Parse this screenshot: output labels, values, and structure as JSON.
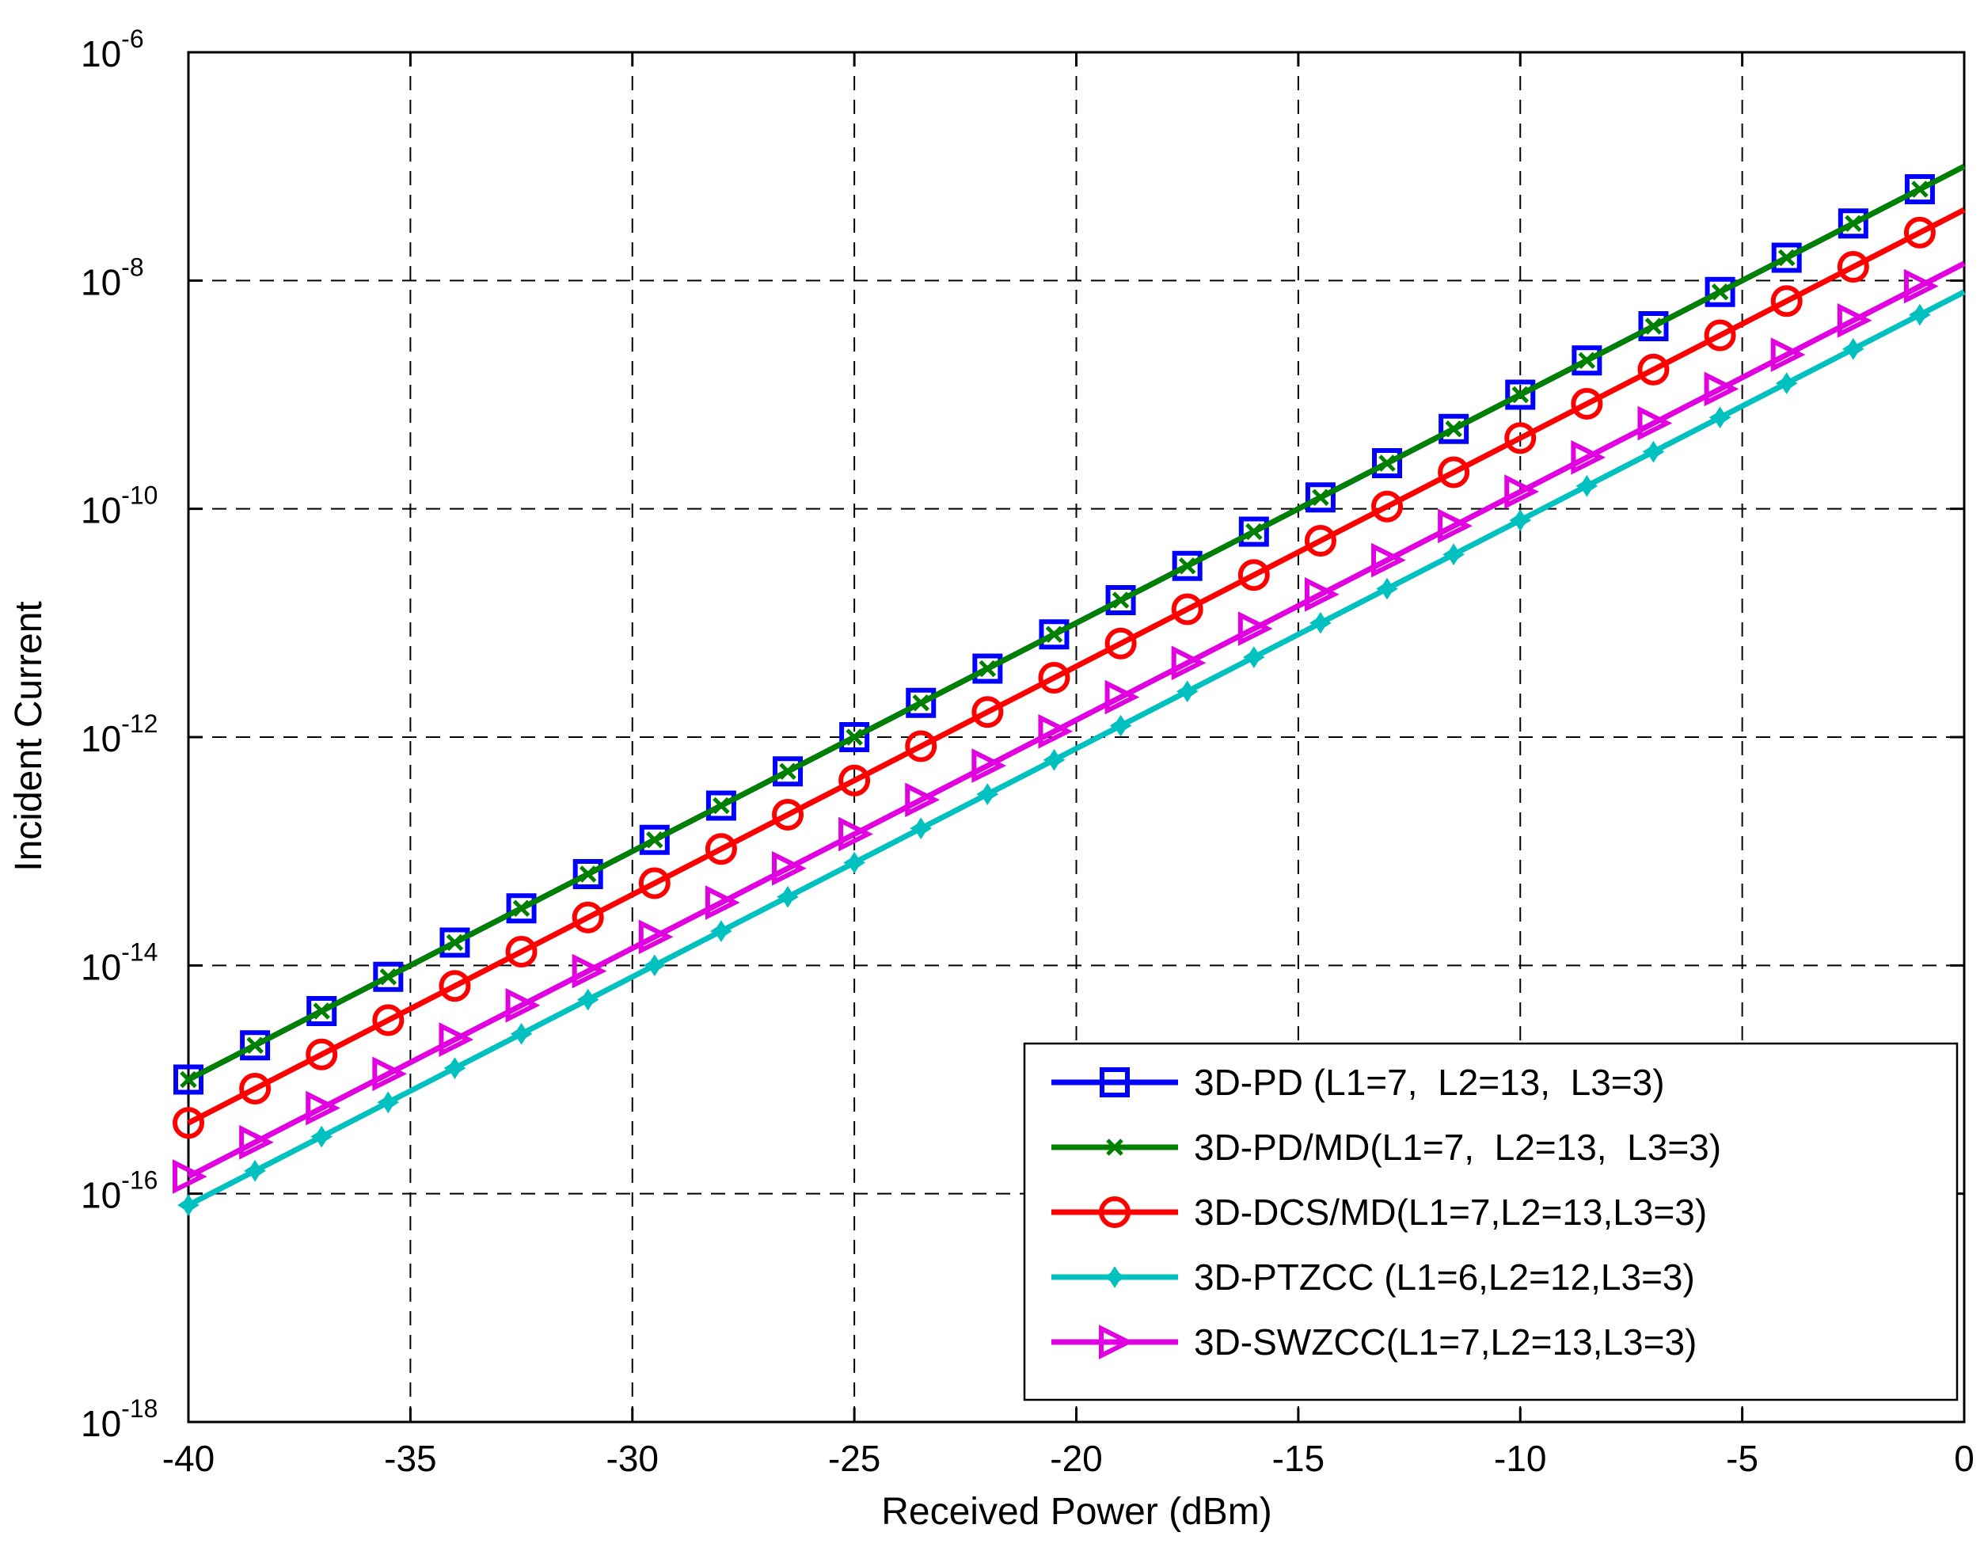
{
  "chart_data": {
    "type": "line",
    "xlabel": "Received Power (dBm)",
    "ylabel": "Incident Current",
    "xlim": [
      -40,
      0
    ],
    "ylim_exponent": [
      -18,
      -6
    ],
    "yscale": "log",
    "grid": true,
    "legend_position": "bottom-right",
    "x_ticks": [
      "-40",
      "-35",
      "-30",
      "-25",
      "-20",
      "-15",
      "-10",
      "-5",
      "0"
    ],
    "y_ticks": [
      {
        "base": "10",
        "exp": "-6"
      },
      {
        "base": "10",
        "exp": "-8"
      },
      {
        "base": "10",
        "exp": "-10"
      },
      {
        "base": "10",
        "exp": "-12"
      },
      {
        "base": "10",
        "exp": "-14"
      },
      {
        "base": "10",
        "exp": "-16"
      },
      {
        "base": "10",
        "exp": "-18"
      }
    ],
    "x": [
      -40,
      -38.5,
      -37,
      -35.5,
      -34,
      -32.5,
      -31,
      -29.5,
      -28,
      -26.5,
      -25,
      -23.5,
      -22,
      -20.5,
      -19,
      -17.5,
      -16,
      -14.5,
      -13,
      -11.5,
      -10,
      -8.5,
      -7,
      -5.5,
      -4,
      -2.5,
      -1
    ],
    "series": [
      {
        "name": "3D-PD (L1=7,  L2=13,  L3=3)",
        "color": "#0000ff",
        "marker": "square",
        "log10_start": -15.0,
        "log10_slope_per_dBm": 0.2,
        "x_end": -1
      },
      {
        "name": "3D-PD/MD(L1=7,  L2=13,  L3=3)",
        "color": "#008000",
        "marker": "x",
        "log10_start": -15.0,
        "log10_slope_per_dBm": 0.2,
        "x_end": 0
      },
      {
        "name": "3D-DCS/MD(L1=7,L2=13,L3=3)",
        "color": "#ff0000",
        "marker": "circle",
        "log10_start": -15.38,
        "log10_slope_per_dBm": 0.2,
        "x_end": 0
      },
      {
        "name": "3D-PTZCC (L1=6,L2=12,L3=3)",
        "color": "#00c0c0",
        "marker": "star",
        "log10_start": -16.1,
        "log10_slope_per_dBm": 0.2,
        "x_end": 0
      },
      {
        "name": "3D-SWZCC(L1=7,L2=13,L3=3)",
        "color": "#e000e0",
        "marker": "triangle-right",
        "log10_start": -15.85,
        "log10_slope_per_dBm": 0.2,
        "x_end": 0
      }
    ]
  }
}
